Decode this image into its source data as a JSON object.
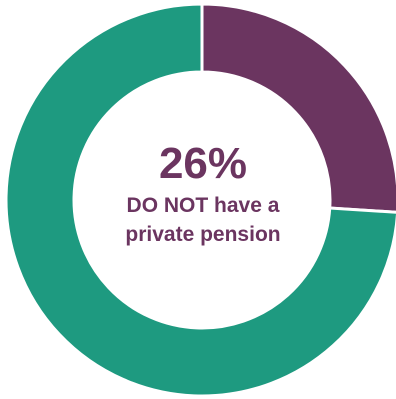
{
  "chart_data": {
    "type": "pie",
    "title": "",
    "slices": [
      {
        "label": "DO NOT have a private pension",
        "value": 26,
        "color": "#6b3560"
      },
      {
        "label": "",
        "value": 74,
        "color": "#1e9a80"
      }
    ],
    "center_label": {
      "value": "26%",
      "line1": "DO NOT have a",
      "line2": "private pension",
      "color": "#6b3560"
    }
  }
}
